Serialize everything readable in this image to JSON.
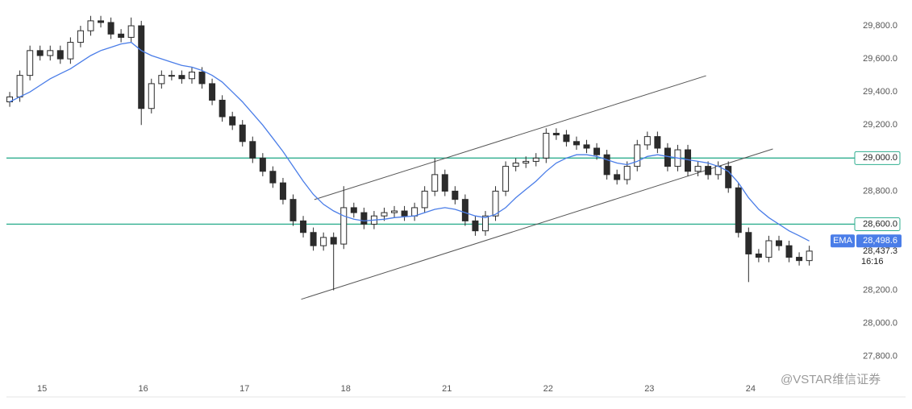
{
  "chart_data": {
    "type": "candlestick",
    "xlim": [
      -0.96,
      81.1
    ],
    "ylim": [
      27570,
      29956
    ],
    "xticks": [
      {
        "value": 3.19,
        "label": "15"
      },
      {
        "value": 13.19,
        "label": "16"
      },
      {
        "value": 23.2,
        "label": "17"
      },
      {
        "value": 33.2,
        "label": "18"
      },
      {
        "value": 43.2,
        "label": "21"
      },
      {
        "value": 53.2,
        "label": "22"
      },
      {
        "value": 63.2,
        "label": "23"
      },
      {
        "value": 73.2,
        "label": "24"
      }
    ],
    "yticks": [
      {
        "value": 29800,
        "label": "29,800.0"
      },
      {
        "value": 29600,
        "label": "29,600.0"
      },
      {
        "value": 29400,
        "label": "29,400.0"
      },
      {
        "value": 29200,
        "label": "29,200.0"
      },
      {
        "value": 28800,
        "label": "28,800.0"
      },
      {
        "value": 28200,
        "label": "28,200.0"
      },
      {
        "value": 28000,
        "label": "28,000.0"
      },
      {
        "value": 27800,
        "label": "27,800.0"
      }
    ],
    "up_color": "#ffffff",
    "down_color": "#2b2b2b",
    "outline_color": "#2b2b2b",
    "open": [
      29340,
      29370,
      29500,
      29650,
      29620,
      29650,
      29600,
      29700,
      29770,
      29830,
      29820,
      29750,
      29730,
      29800,
      29300,
      29450,
      29500,
      29500,
      29480,
      29520,
      29450,
      29350,
      29250,
      29200,
      29100,
      29000,
      28920,
      28850,
      28750,
      28620,
      28550,
      28470,
      28520,
      28480,
      28700,
      28670,
      28600,
      28650,
      28670,
      28680,
      28650,
      28700,
      28800,
      28900,
      28800,
      28750,
      28620,
      28560,
      28650,
      28800,
      28950,
      28970,
      28980,
      29000,
      29150,
      29140,
      29100,
      29080,
      29060,
      29020,
      28900,
      28870,
      28950,
      29080,
      29130,
      29060,
      28950,
      29050,
      28920,
      28950,
      28900,
      28950,
      28820,
      28550,
      28420,
      28400,
      28500,
      28470,
      28400,
      28380
    ],
    "high": [
      29400,
      29530,
      29680,
      29680,
      29680,
      29680,
      29730,
      29800,
      29860,
      29860,
      29850,
      29780,
      29850,
      29830,
      29480,
      29530,
      29530,
      29530,
      29550,
      29550,
      29480,
      29380,
      29280,
      29230,
      29130,
      29030,
      28950,
      28880,
      28780,
      28650,
      28580,
      28550,
      28550,
      28830,
      28730,
      28700,
      28680,
      28700,
      28710,
      28710,
      28730,
      28830,
      29000,
      28930,
      28830,
      28780,
      28650,
      28680,
      28830,
      28980,
      29000,
      29010,
      29030,
      29180,
      29180,
      29170,
      29130,
      29110,
      29090,
      29050,
      28930,
      28980,
      29110,
      29160,
      29160,
      29090,
      29080,
      29080,
      28980,
      28980,
      28980,
      28980,
      28850,
      28580,
      28450,
      28530,
      28530,
      28500,
      28430,
      28470
    ],
    "low": [
      29310,
      29340,
      29470,
      29590,
      29590,
      29570,
      29570,
      29670,
      29740,
      29790,
      29720,
      29700,
      29700,
      29200,
      29270,
      29420,
      29470,
      29450,
      29450,
      29420,
      29320,
      29220,
      29170,
      29070,
      28970,
      28890,
      28820,
      28720,
      28590,
      28520,
      28440,
      28440,
      28200,
      28450,
      28640,
      28570,
      28570,
      28620,
      28640,
      28620,
      28620,
      28670,
      28770,
      28770,
      28720,
      28590,
      28530,
      28530,
      28620,
      28770,
      28920,
      28940,
      28950,
      28970,
      29110,
      29070,
      29050,
      29030,
      28990,
      28870,
      28840,
      28840,
      28920,
      29050,
      29030,
      28920,
      28920,
      28890,
      28890,
      28870,
      28870,
      28790,
      28520,
      28250,
      28370,
      28370,
      28440,
      28370,
      28350,
      28350
    ],
    "close": [
      29370,
      29500,
      29650,
      29620,
      29650,
      29600,
      29700,
      29770,
      29830,
      29820,
      29750,
      29730,
      29800,
      29300,
      29450,
      29500,
      29500,
      29480,
      29520,
      29450,
      29350,
      29250,
      29200,
      29100,
      29000,
      28920,
      28850,
      28750,
      28620,
      28550,
      28470,
      28520,
      28480,
      28700,
      28670,
      28600,
      28650,
      28670,
      28680,
      28650,
      28700,
      28800,
      28900,
      28800,
      28750,
      28620,
      28560,
      28650,
      28800,
      28950,
      28970,
      28980,
      29000,
      29150,
      29140,
      29100,
      29080,
      29060,
      29020,
      28900,
      28870,
      28950,
      29080,
      29130,
      29060,
      28950,
      29050,
      28920,
      28950,
      28900,
      28950,
      28820,
      28550,
      28420,
      28400,
      28500,
      28470,
      28400,
      28380,
      28437.3
    ],
    "ema": {
      "name": "EMA",
      "color": "#4a7de8",
      "value_label": "28,498.6",
      "values": [
        29340,
        29370,
        29400,
        29440,
        29480,
        29510,
        29540,
        29580,
        29620,
        29650,
        29670,
        29690,
        29700,
        29650,
        29620,
        29600,
        29580,
        29560,
        29550,
        29530,
        29500,
        29460,
        29400,
        29340,
        29270,
        29200,
        29120,
        29040,
        28950,
        28860,
        28780,
        28720,
        28680,
        28650,
        28630,
        28620,
        28625,
        28630,
        28640,
        28645,
        28650,
        28670,
        28690,
        28700,
        28690,
        28670,
        28650,
        28640,
        28660,
        28700,
        28760,
        28810,
        28860,
        28920,
        28970,
        29000,
        29020,
        29020,
        29010,
        28990,
        28970,
        28960,
        28980,
        29010,
        29020,
        29010,
        29000,
        28990,
        28980,
        28970,
        28950,
        28920,
        28850,
        28760,
        28690,
        28640,
        28600,
        28560,
        28530,
        28498.6
      ]
    },
    "levels": [
      {
        "value": 29000,
        "label": "29,000.0",
        "color": "#2fae8f"
      },
      {
        "value": 28600,
        "label": "28,600.0",
        "color": "#2fae8f"
      }
    ],
    "trendlines": [
      {
        "x": [
          30.1,
          68.8
        ],
        "y": [
          28749,
          29498
        ],
        "color": "#555555"
      },
      {
        "x": [
          28.8,
          75.4
        ],
        "y": [
          28146,
          29055
        ],
        "color": "#555555"
      }
    ],
    "last_price": {
      "value": 28437.3,
      "label": "28,437.3"
    },
    "countdown": "16:16",
    "watermark": "@VSTAR维信证券"
  }
}
